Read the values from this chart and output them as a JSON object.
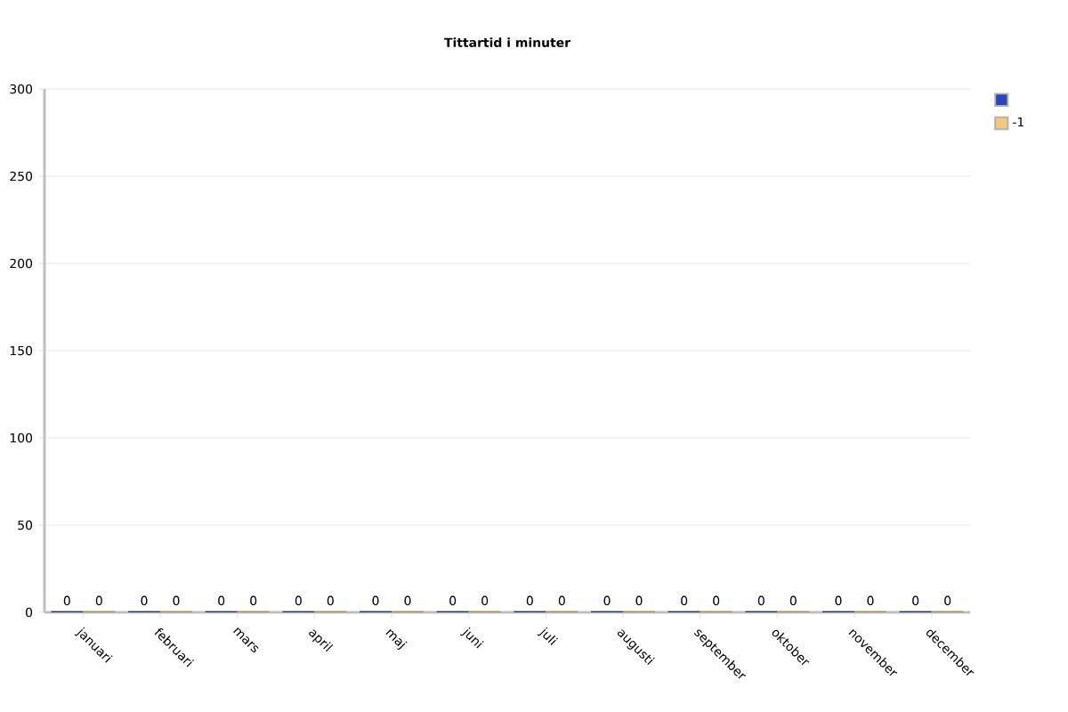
{
  "chart_data": {
    "type": "bar",
    "title": "Tittartid i minuter",
    "categories": [
      "januari",
      "februari",
      "mars",
      "april",
      "maj",
      "juni",
      "juli",
      "augusti",
      "september",
      "oktober",
      "november",
      "december"
    ],
    "series": [
      {
        "color": "#2a47b8",
        "values": [
          0,
          0,
          0,
          0,
          0,
          0,
          0,
          0,
          0,
          0,
          0,
          0
        ]
      },
      {
        "name": "-1",
        "color": "#f5c77a",
        "values": [
          0,
          0,
          0,
          0,
          0,
          0,
          0,
          0,
          0,
          0,
          0,
          0
        ]
      }
    ],
    "ylim": [
      0,
      300
    ],
    "yticks": [
      0,
      50,
      100,
      150,
      200,
      250,
      300
    ],
    "grid": "y",
    "legend": "top right",
    "data_labels": true
  }
}
